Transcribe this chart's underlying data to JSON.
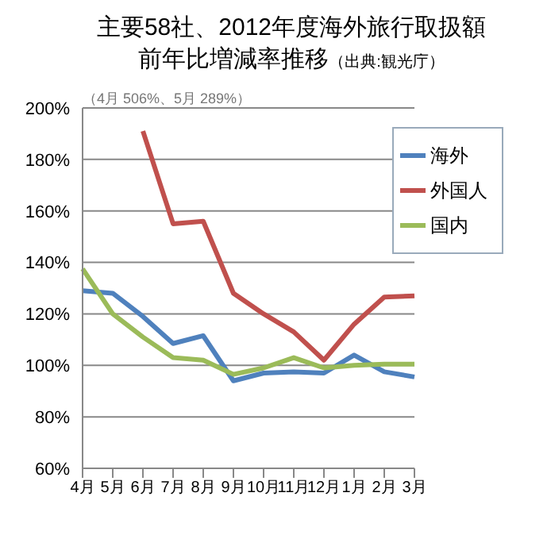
{
  "chart_data": {
    "type": "line",
    "title": "主要58社、2012年度海外旅行取扱額前年比増減率推移",
    "subtitle": "（出典:観光庁）",
    "annotations": [
      "（4月 506%、5月 289%）"
    ],
    "categories": [
      "4月",
      "5月",
      "6月",
      "7月",
      "8月",
      "9月",
      "10月",
      "11月",
      "12月",
      "1月",
      "2月",
      "3月"
    ],
    "series": [
      {
        "name": "海外",
        "color": "#4f81bd",
        "values": [
          129,
          128,
          119,
          108.5,
          111.5,
          94,
          97,
          97.5,
          97,
          104,
          97.5,
          95.5
        ]
      },
      {
        "name": "外国人",
        "color": "#c0504d",
        "values": [
          null,
          null,
          191,
          155,
          156,
          128,
          120,
          113,
          102,
          116,
          126.5,
          127
        ]
      },
      {
        "name": "国内",
        "color": "#9bbb59",
        "values": [
          137.5,
          120,
          111,
          103,
          102,
          96.5,
          99,
          103,
          99,
          100,
          100.5,
          100.5
        ]
      }
    ],
    "ylim": [
      60,
      200
    ],
    "yticks": [
      {
        "value": 60,
        "label": "60%"
      },
      {
        "value": 80,
        "label": "80%"
      },
      {
        "value": 100,
        "label": "100%"
      },
      {
        "value": 120,
        "label": "120%"
      },
      {
        "value": 140,
        "label": "140%"
      },
      {
        "value": 160,
        "label": "160%"
      },
      {
        "value": 180,
        "label": "180%"
      },
      {
        "value": 200,
        "label": "200%"
      }
    ],
    "grid": "y",
    "legend": "top right",
    "marker": "none",
    "line_style": "solid"
  }
}
